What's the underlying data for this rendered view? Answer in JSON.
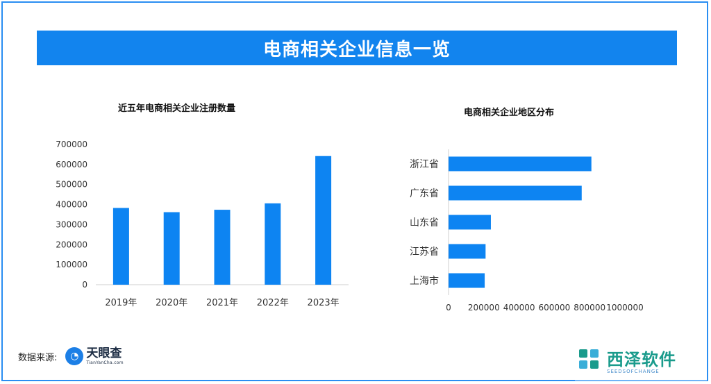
{
  "banner": {
    "title": "电商相关企业信息一览"
  },
  "colors": {
    "accent": "#1284ee",
    "bar": "#0d84f2"
  },
  "source": {
    "label": "数据来源:",
    "logo_cn": "天眼查",
    "logo_en": "TianYanCha.com",
    "logo_icon": "tianyancha-eye-icon"
  },
  "watermark": {
    "cn": "西泽软件",
    "en": "SEEDSOFCHANGE"
  },
  "chart_data": [
    {
      "type": "bar",
      "title": "近五年电商相关企业注册数量",
      "categories": [
        "2019年",
        "2020年",
        "2021年",
        "2022年",
        "2023年"
      ],
      "values": [
        383000,
        362000,
        374000,
        406000,
        642000
      ],
      "ylim": [
        0,
        700000
      ],
      "yticks": [
        "0",
        "100000",
        "200000",
        "300000",
        "400000",
        "500000",
        "600000",
        "700000"
      ],
      "xlabel": "",
      "ylabel": "",
      "grid": false
    },
    {
      "type": "bar",
      "orientation": "horizontal",
      "title": "电商相关企业地区分布",
      "categories": [
        "浙江省",
        "广东省",
        "山东省",
        "江苏省",
        "上海市"
      ],
      "values": [
        810000,
        755000,
        240000,
        210000,
        205000
      ],
      "xlim": [
        0,
        1000000
      ],
      "xticks": [
        "0",
        "200000",
        "400000",
        "600000",
        "800000",
        "1000000"
      ],
      "xlabel": "",
      "ylabel": "",
      "grid": false
    }
  ]
}
